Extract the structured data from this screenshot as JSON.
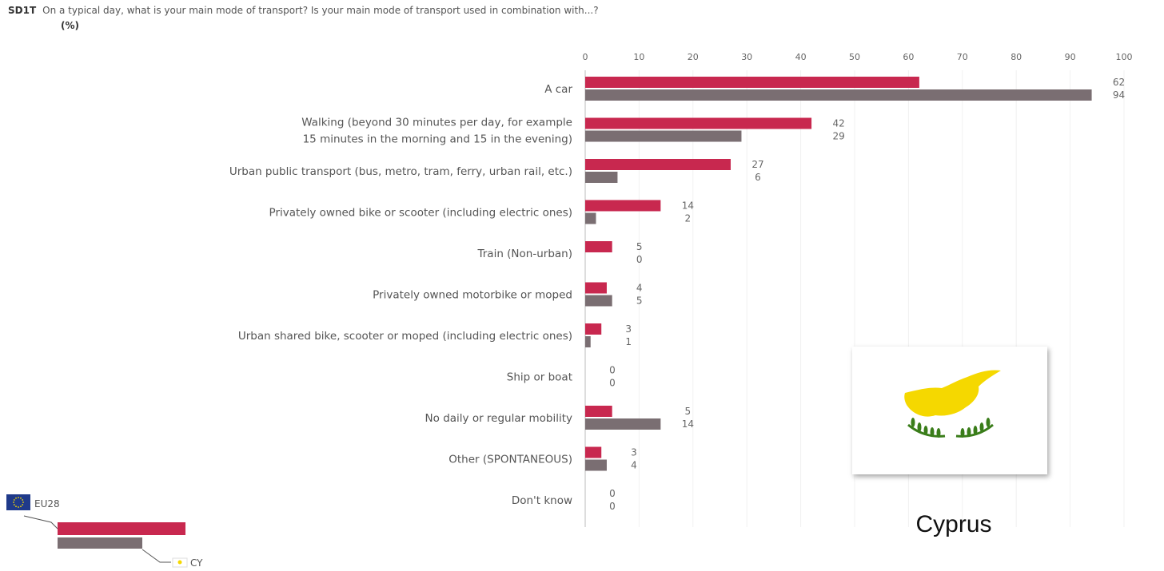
{
  "header": {
    "code": "SD1T",
    "question": "On a typical day, what is your main mode of transport? Is your main mode of transport used in combination with...?",
    "unit": "(%)"
  },
  "chart_data": {
    "type": "bar",
    "orientation": "horizontal",
    "xlim": [
      0,
      100
    ],
    "ticks": [
      0,
      10,
      20,
      30,
      40,
      50,
      60,
      70,
      80,
      90,
      100
    ],
    "categories": [
      [
        "A car"
      ],
      [
        "Walking (beyond 30 minutes per day, for example",
        "15 minutes in the morning and 15 in the evening)"
      ],
      [
        "Urban public transport (bus, metro, tram, ferry, urban rail, etc.)"
      ],
      [
        "Privately owned bike or scooter (including electric ones)"
      ],
      [
        "Train (Non-urban)"
      ],
      [
        "Privately owned motorbike or moped"
      ],
      [
        "Urban shared bike, scooter or moped (including electric ones)"
      ],
      [
        "Ship or boat"
      ],
      [
        "No daily or regular mobility"
      ],
      [
        "Other (SPONTANEOUS)"
      ],
      [
        "Don't know"
      ]
    ],
    "series": [
      {
        "name": "EU28",
        "color": "#c8284f",
        "values": [
          62,
          42,
          27,
          14,
          5,
          4,
          3,
          0,
          5,
          3,
          0
        ]
      },
      {
        "name": "CY",
        "color": "#7a6e72",
        "values": [
          94,
          29,
          6,
          2,
          0,
          5,
          1,
          0,
          14,
          4,
          0
        ]
      }
    ],
    "legend_position": "bottom-left",
    "grid": true
  },
  "legend": {
    "eu_label": "EU28",
    "cy_label": "CY"
  },
  "country": {
    "name": "Cyprus",
    "flag_colors": {
      "island": "#f5d800",
      "branches": "#3a7d1a"
    }
  }
}
